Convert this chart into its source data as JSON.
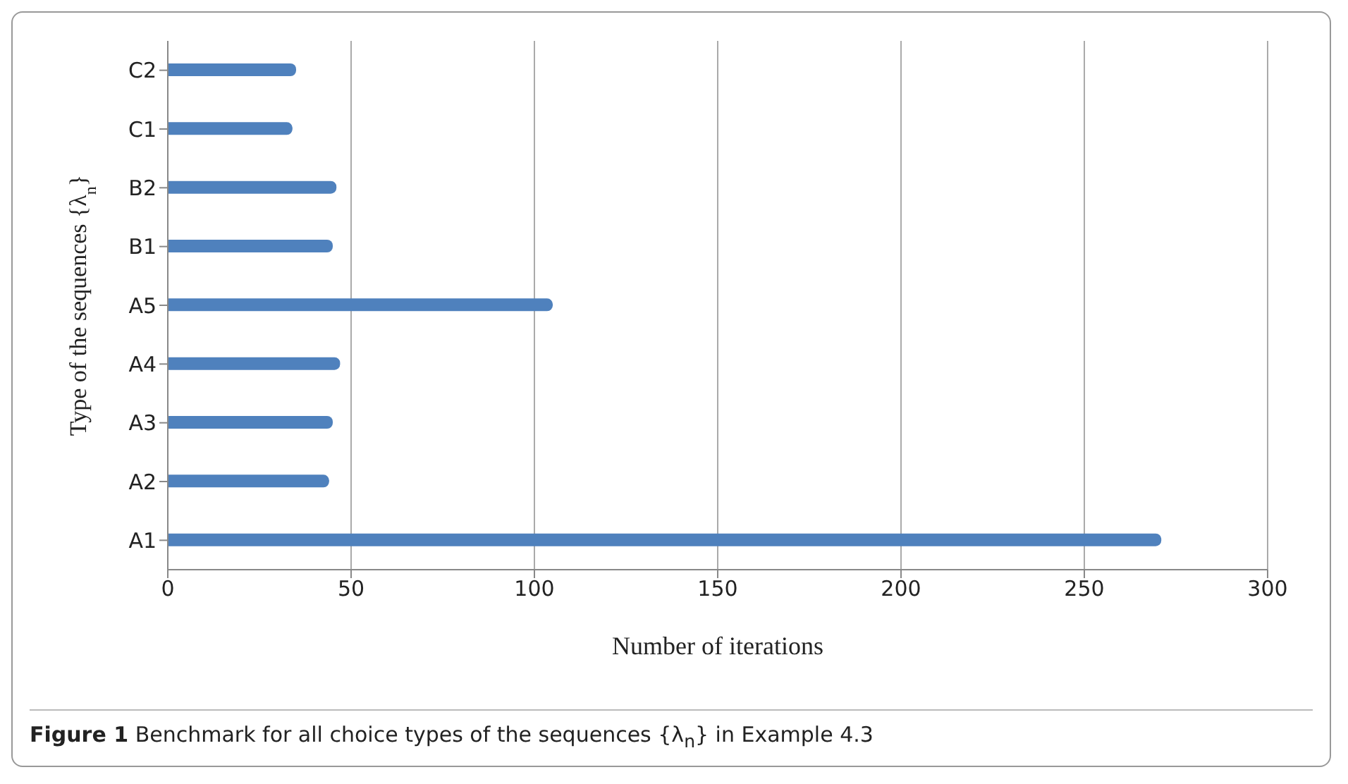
{
  "chart_data": {
    "type": "bar",
    "orientation": "horizontal",
    "title": "Figure 1 Benchmark for all choice types of the sequences {λ$_{n}$} in Example 4.3",
    "xlabel": "Number of iterations",
    "ylabel": "Type of the sequences {λ$_{n}$}",
    "categories": [
      "C2",
      "C1",
      "B2",
      "B1",
      "A5",
      "A4",
      "A3",
      "A2",
      "A1"
    ],
    "values": [
      35,
      34,
      46,
      45,
      105,
      47,
      45,
      44,
      271
    ],
    "color": "#4f81bd",
    "xlim": [
      0,
      300
    ],
    "xticks": [
      0,
      50,
      100,
      150,
      200,
      250,
      300
    ],
    "grid": "x"
  }
}
